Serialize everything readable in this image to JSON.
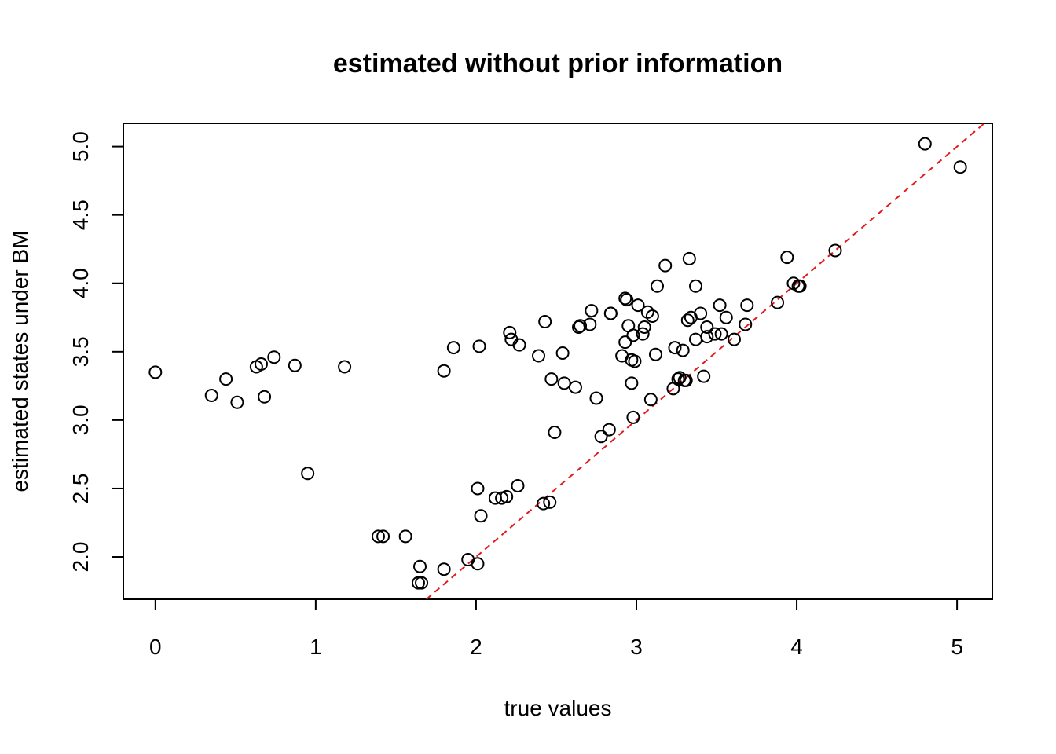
{
  "chart_data": {
    "type": "scatter",
    "title": "estimated without prior information",
    "xlabel": "true values",
    "ylabel": "estimated states under BM",
    "xlim": [
      -0.2,
      5.22
    ],
    "ylim": [
      1.69,
      5.17
    ],
    "xticks": [
      "0",
      "1",
      "2",
      "3",
      "4",
      "5"
    ],
    "yticks": [
      "2.0",
      "2.5",
      "3.0",
      "3.5",
      "4.0",
      "4.5",
      "5.0"
    ],
    "grid": false,
    "reference_line": {
      "intercept": 0,
      "slope": 1,
      "color": "#e31a1c",
      "style": "dashed"
    },
    "points": [
      [
        0.0,
        3.35
      ],
      [
        0.35,
        3.18
      ],
      [
        0.44,
        3.3
      ],
      [
        0.51,
        3.13
      ],
      [
        0.63,
        3.39
      ],
      [
        0.66,
        3.41
      ],
      [
        0.68,
        3.17
      ],
      [
        0.74,
        3.46
      ],
      [
        0.87,
        3.4
      ],
      [
        0.95,
        2.61
      ],
      [
        1.18,
        3.39
      ],
      [
        1.39,
        2.15
      ],
      [
        1.42,
        2.15
      ],
      [
        1.56,
        2.15
      ],
      [
        1.64,
        1.81
      ],
      [
        1.65,
        1.93
      ],
      [
        1.66,
        1.81
      ],
      [
        1.8,
        1.91
      ],
      [
        1.8,
        3.36
      ],
      [
        1.86,
        3.53
      ],
      [
        1.95,
        1.98
      ],
      [
        2.01,
        1.95
      ],
      [
        2.01,
        2.5
      ],
      [
        2.02,
        3.54
      ],
      [
        2.03,
        2.3
      ],
      [
        2.12,
        2.43
      ],
      [
        2.16,
        2.43
      ],
      [
        2.19,
        2.44
      ],
      [
        2.21,
        3.64
      ],
      [
        2.22,
        3.59
      ],
      [
        2.26,
        2.52
      ],
      [
        2.27,
        3.55
      ],
      [
        2.39,
        3.47
      ],
      [
        2.42,
        2.39
      ],
      [
        2.43,
        3.72
      ],
      [
        2.46,
        2.4
      ],
      [
        2.47,
        3.3
      ],
      [
        2.49,
        2.91
      ],
      [
        2.54,
        3.49
      ],
      [
        2.55,
        3.27
      ],
      [
        2.62,
        3.24
      ],
      [
        2.64,
        3.68
      ],
      [
        2.65,
        3.69
      ],
      [
        2.71,
        3.7
      ],
      [
        2.72,
        3.8
      ],
      [
        2.75,
        3.16
      ],
      [
        2.78,
        2.88
      ],
      [
        2.83,
        2.93
      ],
      [
        2.84,
        3.78
      ],
      [
        2.84,
        3.78
      ],
      [
        2.91,
        3.47
      ],
      [
        2.93,
        3.89
      ],
      [
        2.93,
        3.57
      ],
      [
        2.94,
        3.88
      ],
      [
        2.95,
        3.69
      ],
      [
        2.97,
        3.44
      ],
      [
        2.97,
        3.27
      ],
      [
        2.98,
        3.02
      ],
      [
        2.98,
        3.62
      ],
      [
        2.99,
        3.43
      ],
      [
        3.01,
        3.84
      ],
      [
        3.04,
        3.63
      ],
      [
        3.05,
        3.68
      ],
      [
        3.07,
        3.79
      ],
      [
        3.09,
        3.15
      ],
      [
        3.1,
        3.76
      ],
      [
        3.12,
        3.48
      ],
      [
        3.13,
        3.98
      ],
      [
        3.18,
        4.13
      ],
      [
        3.23,
        3.23
      ],
      [
        3.24,
        3.53
      ],
      [
        3.26,
        3.3
      ],
      [
        3.27,
        3.31
      ],
      [
        3.29,
        3.51
      ],
      [
        3.3,
        3.29
      ],
      [
        3.31,
        3.29
      ],
      [
        3.32,
        3.73
      ],
      [
        3.33,
        4.18
      ],
      [
        3.34,
        3.75
      ],
      [
        3.37,
        3.59
      ],
      [
        3.37,
        3.98
      ],
      [
        3.4,
        3.78
      ],
      [
        3.42,
        3.32
      ],
      [
        3.44,
        3.61
      ],
      [
        3.44,
        3.68
      ],
      [
        3.49,
        3.63
      ],
      [
        3.52,
        3.84
      ],
      [
        3.53,
        3.63
      ],
      [
        3.56,
        3.75
      ],
      [
        3.61,
        3.59
      ],
      [
        3.68,
        3.7
      ],
      [
        3.69,
        3.84
      ],
      [
        3.88,
        3.86
      ],
      [
        3.94,
        4.19
      ],
      [
        3.98,
        4.0
      ],
      [
        4.01,
        3.98
      ],
      [
        4.02,
        3.98
      ],
      [
        4.24,
        4.24
      ],
      [
        4.8,
        5.02
      ],
      [
        5.02,
        4.85
      ]
    ]
  }
}
